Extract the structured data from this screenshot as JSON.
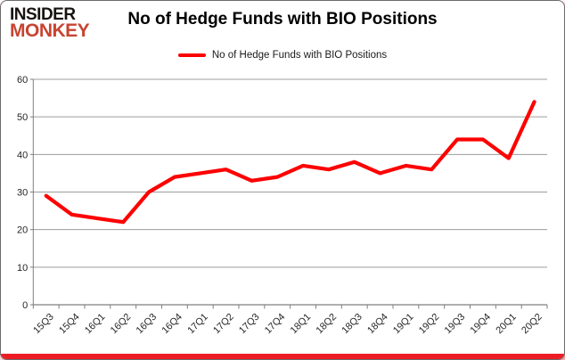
{
  "brand": {
    "line1": "INSIDER",
    "line2": "MONKEY",
    "line1_color": "#171310",
    "line2_color": "#c74431"
  },
  "header": {
    "title": "No of Hedge Funds with BIO Positions"
  },
  "legend": {
    "label": "No of Hedge Funds with BIO Positions",
    "swatch_color": "#fe0000"
  },
  "frame": {
    "bottom_bar_color": "#ed1c24"
  },
  "chart_data": {
    "type": "line",
    "title": "No of Hedge Funds with BIO Positions",
    "categories": [
      "15Q3",
      "15Q4",
      "16Q1",
      "16Q2",
      "16Q3",
      "16Q4",
      "17Q1",
      "17Q2",
      "17Q3",
      "17Q4",
      "18Q1",
      "18Q2",
      "18Q3",
      "18Q4",
      "19Q1",
      "19Q2",
      "19Q3",
      "19Q4",
      "20Q1",
      "20Q2"
    ],
    "series": [
      {
        "name": "No of Hedge Funds with BIO Positions",
        "color": "#fe0000",
        "values": [
          29,
          24,
          23,
          22,
          30,
          34,
          35,
          36,
          33,
          34,
          37,
          36,
          38,
          35,
          37,
          36,
          44,
          44,
          39,
          54
        ]
      }
    ],
    "xlabel": "",
    "ylabel": "",
    "ylim": [
      0,
      60
    ],
    "yticks": [
      0,
      10,
      20,
      30,
      40,
      50,
      60
    ],
    "grid": true,
    "legend_position": "top",
    "gridline_color": "#9c9c9c",
    "axis_color": "#7f7f7f",
    "tick_label_color": "#262626"
  }
}
